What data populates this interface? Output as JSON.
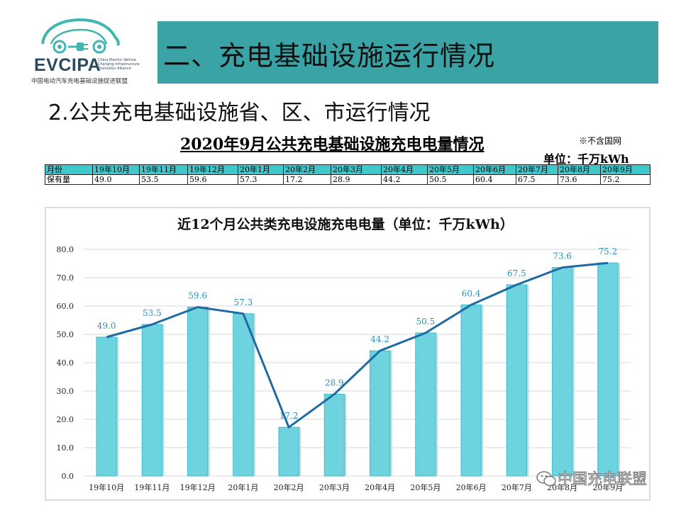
{
  "logo": {
    "name": "EVCIPA",
    "tagline": [
      "China Electric Vehicle",
      "Charging Infrastructure",
      "Promotion Alliance"
    ],
    "cn_name": "中国电动汽车充电基础设施促进联盟"
  },
  "header": {
    "title": "二、充电基础设施运行情况"
  },
  "section": {
    "title": "2.公共充电基础设施省、区、市运行情况"
  },
  "table": {
    "title": "2020年9月公共充电基础设施充电电量情况",
    "note": "※不含国网",
    "unit": "单位：千万kWh",
    "header_label": "月份",
    "row_label": "保有量",
    "months": [
      "19年10月",
      "19年11月",
      "19年12月",
      "20年1月",
      "20年2月",
      "20年3月",
      "20年4月",
      "20年5月",
      "20年6月",
      "20年7月",
      "20年8月",
      "20年9月"
    ],
    "values": [
      "49.0",
      "53.5",
      "59.6",
      "57.3",
      "17.2",
      "28.9",
      "44.2",
      "50.5",
      "60.4",
      "67.5",
      "73.6",
      "75.2"
    ]
  },
  "chart_data": {
    "type": "bar",
    "title": "近12个月公共类充电设施充电电量（单位：千万kWh）",
    "categories": [
      "19年10月",
      "19年11月",
      "19年12月",
      "20年1月",
      "20年2月",
      "20年3月",
      "20年4月",
      "20年5月",
      "20年6月",
      "20年7月",
      "20年8月",
      "20年9月"
    ],
    "series": [
      {
        "type": "bar",
        "values": [
          49.0,
          53.5,
          59.6,
          57.3,
          17.2,
          28.9,
          44.2,
          50.5,
          60.4,
          67.5,
          73.6,
          75.2
        ]
      },
      {
        "type": "line",
        "values": [
          49.0,
          53.5,
          59.6,
          57.3,
          17.2,
          28.9,
          44.2,
          50.5,
          60.4,
          67.5,
          73.6,
          75.2
        ]
      }
    ],
    "data_labels": [
      "49.0",
      "53.5",
      "59.6",
      "57.3",
      "17.2",
      "28.9",
      "44.2",
      "50.5",
      "60.4",
      "67.5",
      "73.6",
      "75.2"
    ],
    "y_ticks": [
      "0.0",
      "10.0",
      "20.0",
      "30.0",
      "40.0",
      "50.0",
      "60.0",
      "70.0",
      "80.0"
    ],
    "ylim": [
      0,
      80
    ],
    "grid": true,
    "legend": "none",
    "colors": {
      "bar": "#6dd3df",
      "bar_edge": "#45b9c8",
      "line": "#1f6aa3",
      "label": "#2b8fb8",
      "grid": "#d9d9d9"
    }
  },
  "watermark": {
    "text": "中国充电联盟"
  }
}
